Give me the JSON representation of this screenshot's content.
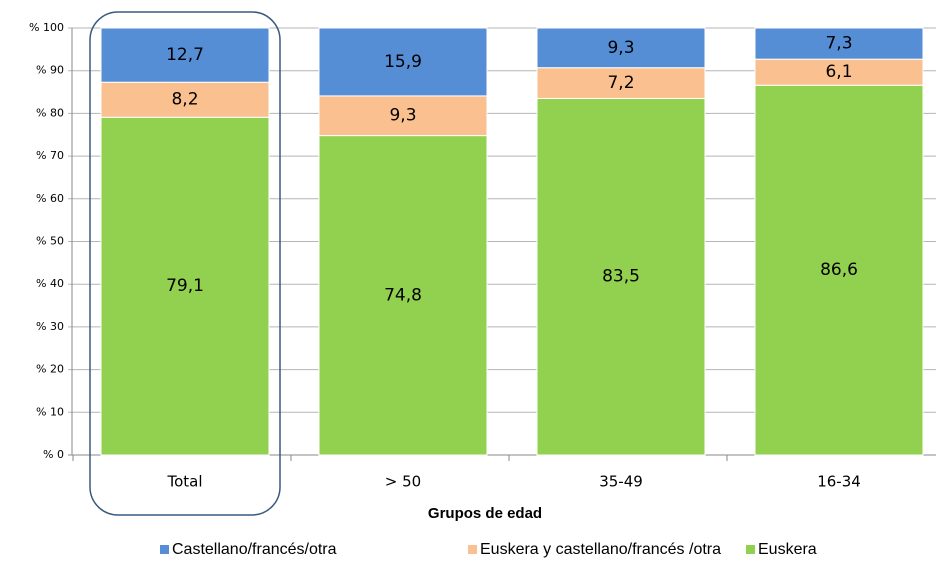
{
  "chart_data": {
    "type": "bar",
    "stacked": true,
    "x_label": "Grupos de edad",
    "categories": [
      "Total",
      "> 50",
      "35-49",
      "16-34"
    ],
    "series": [
      {
        "name": "Euskera",
        "color": "#92d050",
        "values": [
          79.1,
          74.8,
          83.5,
          86.6
        ],
        "value_labels": [
          "79,1",
          "74,8",
          "83,5",
          "86,6"
        ]
      },
      {
        "name": "Euskera y castellano/francés /otra",
        "color": "#fac090",
        "values": [
          8.2,
          9.3,
          7.2,
          6.1
        ],
        "value_labels": [
          "8,2",
          "9,3",
          "7,2",
          "6,1"
        ]
      },
      {
        "name": "Castellano/francés/otra",
        "color": "#558ed5",
        "values": [
          12.7,
          15.9,
          9.3,
          7.3
        ],
        "value_labels": [
          "12,7",
          "15,9",
          "9,3",
          "7,3"
        ]
      }
    ],
    "ylim": [
      0,
      100
    ],
    "yticks": [
      {
        "value": 0,
        "label": "% 0"
      },
      {
        "value": 10,
        "label": "% 10"
      },
      {
        "value": 20,
        "label": "% 20"
      },
      {
        "value": 30,
        "label": "% 30"
      },
      {
        "value": 40,
        "label": "% 40"
      },
      {
        "value": 50,
        "label": "% 50"
      },
      {
        "value": 60,
        "label": "% 60"
      },
      {
        "value": 70,
        "label": "% 70"
      },
      {
        "value": 80,
        "label": "% 80"
      },
      {
        "value": 90,
        "label": "% 90"
      },
      {
        "value": 100,
        "label": "% 100"
      }
    ],
    "grid": true
  }
}
